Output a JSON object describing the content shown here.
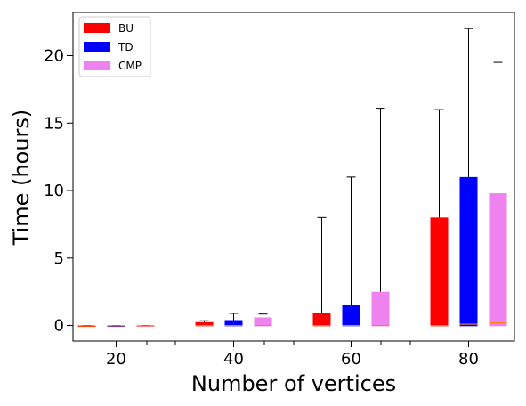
{
  "chart_data": {
    "type": "box",
    "xlabel": "Number of vertices",
    "ylabel": "Time (hours)",
    "x_ticks": [
      20,
      40,
      60,
      80
    ],
    "y_ticks": [
      0,
      5,
      10,
      15,
      20
    ],
    "ylim": [
      -1.15,
      23.2
    ],
    "grid": false,
    "legend_position": "top-left",
    "categories": [
      20,
      40,
      60,
      80
    ],
    "series": [
      {
        "name": "BU",
        "color": "#ff0000",
        "median_color": "#ff7f0e",
        "boxes": [
          {
            "x": 20,
            "min": -0.05,
            "q1": -0.05,
            "median": -0.02,
            "q3": 0.0,
            "max": 0.0
          },
          {
            "x": 40,
            "min": -0.05,
            "q1": -0.05,
            "median": 0.0,
            "q3": 0.25,
            "max": 0.35
          },
          {
            "x": 60,
            "min": -0.05,
            "q1": -0.05,
            "median": 0.0,
            "q3": 0.9,
            "max": 8.0
          },
          {
            "x": 80,
            "min": -0.05,
            "q1": -0.05,
            "median": 0.0,
            "q3": 8.0,
            "max": 16.0
          }
        ]
      },
      {
        "name": "TD",
        "color": "#0000ff",
        "median_color": "#ff7f0e",
        "boxes": [
          {
            "x": 20,
            "min": -0.05,
            "q1": -0.05,
            "median": -0.02,
            "q3": 0.0,
            "max": 0.0
          },
          {
            "x": 40,
            "min": -0.05,
            "q1": -0.05,
            "median": 0.0,
            "q3": 0.4,
            "max": 0.9
          },
          {
            "x": 60,
            "min": -0.05,
            "q1": -0.05,
            "median": 0.0,
            "q3": 1.5,
            "max": 11.0
          },
          {
            "x": 80,
            "min": -0.05,
            "q1": -0.05,
            "median": 0.1,
            "q3": 11.0,
            "max": 22.0
          }
        ]
      },
      {
        "name": "CMP",
        "color": "#ee82ee",
        "median_color": "#ff7f0e",
        "boxes": [
          {
            "x": 20,
            "min": -0.05,
            "q1": -0.05,
            "median": -0.02,
            "q3": 0.0,
            "max": 0.0
          },
          {
            "x": 40,
            "min": -0.05,
            "q1": -0.05,
            "median": 0.0,
            "q3": 0.6,
            "max": 0.85
          },
          {
            "x": 60,
            "min": -0.05,
            "q1": -0.05,
            "median": 0.0,
            "q3": 2.5,
            "max": 16.1
          },
          {
            "x": 80,
            "min": -0.05,
            "q1": -0.05,
            "median": 0.2,
            "q3": 9.8,
            "max": 19.5
          }
        ]
      }
    ]
  }
}
